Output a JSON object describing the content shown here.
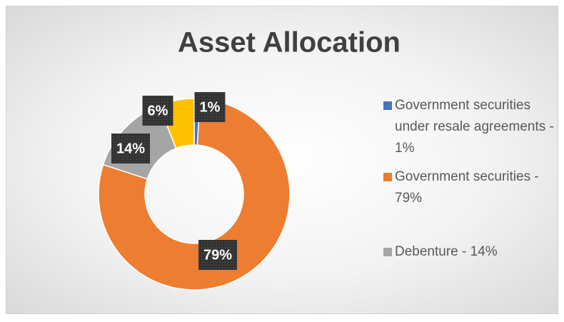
{
  "chart_data": {
    "type": "donut",
    "title": "Asset Allocation",
    "categories": [
      "Government securities under resale agreements - 1%",
      "Government securities - 79%",
      "Debenture - 14%",
      null
    ],
    "values": [
      1,
      79,
      14,
      6
    ],
    "value_labels": [
      "1%",
      "79%",
      "14%",
      "6%"
    ],
    "colors": [
      "#4472c4",
      "#ed7d31",
      "#a5a5a5",
      "#ffc000"
    ],
    "legend": "right"
  }
}
